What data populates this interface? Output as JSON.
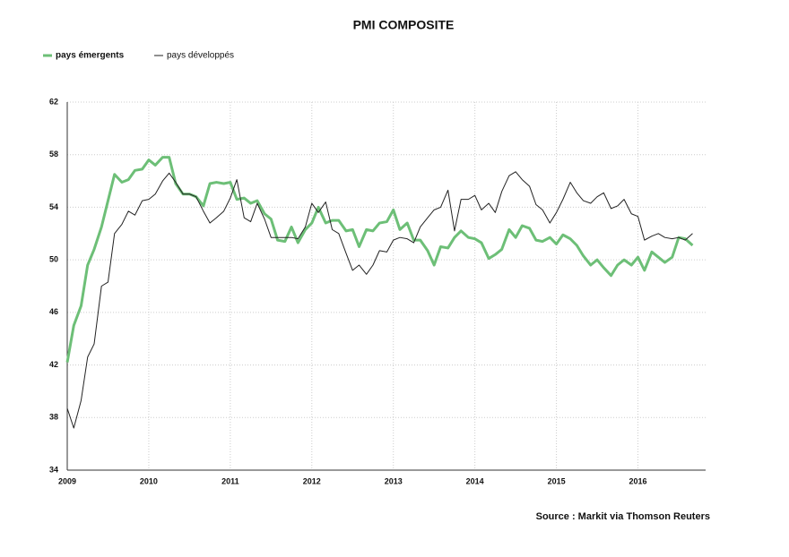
{
  "chart_data": {
    "type": "line",
    "title": "PMI COMPOSITE",
    "source": "Source : Markit via Thomson Reuters",
    "x": [
      2009,
      2009.08,
      2009.17,
      2009.25,
      2009.33,
      2009.42,
      2009.5,
      2009.58,
      2009.67,
      2009.75,
      2009.83,
      2009.92,
      2010,
      2010.08,
      2010.17,
      2010.25,
      2010.33,
      2010.42,
      2010.5,
      2010.58,
      2010.67,
      2010.75,
      2010.83,
      2010.92,
      2011,
      2011.08,
      2011.17,
      2011.25,
      2011.33,
      2011.42,
      2011.5,
      2011.58,
      2011.67,
      2011.75,
      2011.83,
      2011.92,
      2012,
      2012.08,
      2012.17,
      2012.25,
      2012.33,
      2012.42,
      2012.5,
      2012.58,
      2012.67,
      2012.75,
      2012.83,
      2012.92,
      2013,
      2013.08,
      2013.17,
      2013.25,
      2013.33,
      2013.42,
      2013.5,
      2013.58,
      2013.67,
      2013.75,
      2013.83,
      2013.92,
      2014,
      2014.08,
      2014.17,
      2014.25,
      2014.33,
      2014.42,
      2014.5,
      2014.58,
      2014.67,
      2014.75,
      2014.83,
      2014.92,
      2015,
      2015.08,
      2015.17,
      2015.25,
      2015.33,
      2015.42,
      2015.5,
      2015.58,
      2015.67,
      2015.75,
      2015.83,
      2015.92,
      2016,
      2016.08,
      2016.17,
      2016.25,
      2016.33,
      2016.42,
      2016.5,
      2016.58,
      2016.67
    ],
    "series": [
      {
        "name": "pays émergents",
        "color": "#6dbf77",
        "width": 3,
        "values": [
          42.2,
          45,
          46.5,
          49.6,
          50.8,
          52.5,
          54.5,
          56.5,
          55.9,
          56.1,
          56.8,
          56.9,
          57.6,
          57.2,
          57.8,
          57.8,
          55.8,
          55,
          55,
          54.8,
          54.1,
          55.8,
          55.9,
          55.8,
          55.9,
          54.6,
          54.7,
          54.3,
          54.5,
          53.5,
          53.1,
          51.5,
          51.4,
          52.5,
          51.3,
          52.3,
          52.8,
          54,
          52.8,
          53,
          53,
          52.2,
          52.3,
          51,
          52.3,
          52.2,
          52.8,
          52.9,
          53.8,
          52.3,
          52.8,
          51.5,
          51.5,
          50.7,
          49.6,
          51,
          50.9,
          51.7,
          52.2,
          51.7,
          51.6,
          51.3,
          50.1,
          50.4,
          50.8,
          52.3,
          51.7,
          52.6,
          52.4,
          51.5,
          51.4,
          51.7,
          51.2,
          51.9,
          51.6,
          51.1,
          50.3,
          49.6,
          50,
          49.4,
          48.8,
          49.6,
          50,
          49.6,
          50.2,
          49.2,
          50.6,
          50.2,
          49.8,
          50.2,
          51.7,
          51.6,
          51.1
        ]
      },
      {
        "name": "pays développés",
        "color": "#222222",
        "width": 1,
        "values": [
          38.7,
          37.2,
          39.3,
          42.6,
          43.6,
          48,
          48.3,
          52,
          52.7,
          53.7,
          53.4,
          54.5,
          54.6,
          55,
          56,
          56.6,
          55.9,
          55,
          55,
          54.8,
          53.7,
          52.8,
          53.2,
          53.7,
          54.7,
          56.1,
          53.2,
          52.9,
          54.3,
          53.1,
          51.7,
          51.7,
          51.7,
          51.7,
          51.6,
          52.5,
          54.3,
          53.6,
          54.4,
          52.3,
          52,
          50.5,
          49.2,
          49.6,
          48.9,
          49.6,
          50.7,
          50.6,
          51.5,
          51.7,
          51.6,
          51.3,
          52.5,
          53.2,
          53.8,
          54,
          55.3,
          52.2,
          54.6,
          54.6,
          54.9,
          53.8,
          54.3,
          53.6,
          55.2,
          56.4,
          56.7,
          56.1,
          55.6,
          54.2,
          53.8,
          52.8,
          53.6,
          54.6,
          55.9,
          55.1,
          54.5,
          54.3,
          54.8,
          55.1,
          53.9,
          54.1,
          54.6,
          53.5,
          53.3,
          51.5,
          51.8,
          52,
          51.7,
          51.6,
          51.7,
          51.5,
          52
        ]
      }
    ],
    "xlim": [
      2009,
      2016.83
    ],
    "xticks": [
      2009,
      2010,
      2011,
      2012,
      2013,
      2014,
      2015,
      2016
    ],
    "ylim": [
      34,
      62
    ],
    "yticks": [
      34,
      38,
      42,
      46,
      50,
      54,
      58,
      62
    ],
    "grid": true
  }
}
